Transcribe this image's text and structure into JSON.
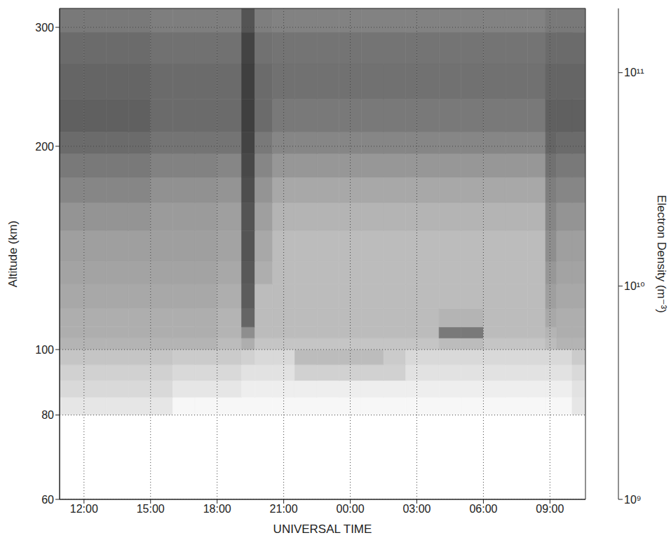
{
  "chart_data": {
    "type": "heatmap",
    "x_label": "UNIVERSAL TIME",
    "y_label": "Altitude (km)",
    "log": "y",
    "grid": true,
    "xlim": [
      10.9,
      34.6
    ],
    "xticks": [
      {
        "value": 12,
        "label": "12:00"
      },
      {
        "value": 15,
        "label": "15:00"
      },
      {
        "value": 18,
        "label": "18:00"
      },
      {
        "value": 21,
        "label": "21:00"
      },
      {
        "value": 24,
        "label": "00:00"
      },
      {
        "value": 27,
        "label": "03:00"
      },
      {
        "value": 30,
        "label": "06:00"
      },
      {
        "value": 33,
        "label": "09:00"
      }
    ],
    "ylim": [
      60,
      320
    ],
    "yticks": [
      60,
      80,
      100,
      200,
      300
    ],
    "x_edges": [
      10.9,
      12,
      13,
      14,
      15,
      16,
      17,
      18,
      19.1,
      19.7,
      20.5,
      21.5,
      22.5,
      23.5,
      24.5,
      25.5,
      26.5,
      27,
      28,
      29,
      30,
      31,
      32,
      32.8,
      33.3,
      34,
      34.6
    ],
    "y_edges": [
      60,
      80,
      85,
      90,
      95,
      100,
      104,
      108,
      115,
      125,
      135,
      150,
      165,
      180,
      195,
      210,
      235,
      265,
      295,
      320
    ],
    "cells": [
      [
        1000000000.0,
        1000000000.0,
        1000000000.0,
        1000000000.0,
        1000000000.0,
        1000000000.0,
        1000000000.0,
        1000000000.0,
        1000000000.0,
        1000000000.0,
        1000000000.0,
        1000000000.0,
        1000000000.0,
        1000000000.0,
        1000000000.0,
        1000000000.0,
        1000000000.0,
        1000000000.0,
        1000000000.0,
        1000000000.0,
        1000000000.0,
        1000000000.0,
        1000000000.0,
        1000000000.0,
        1000000000.0,
        1000000000.0
      ],
      [
        1800000000.0,
        1800000000.0,
        1800000000.0,
        1800000000.0,
        1800000000.0,
        1200000000.0,
        1200000000.0,
        1200000000.0,
        1200000000.0,
        1200000000.0,
        1200000000.0,
        1200000000.0,
        1200000000.0,
        1200000000.0,
        1200000000.0,
        1200000000.0,
        1200000000.0,
        1200000000.0,
        1200000000.0,
        1200000000.0,
        1200000000.0,
        1200000000.0,
        1200000000.0,
        1200000000.0,
        1200000000.0,
        1800000000.0
      ],
      [
        2500000000.0,
        2500000000.0,
        2500000000.0,
        2500000000.0,
        2500000000.0,
        1800000000.0,
        1800000000.0,
        1800000000.0,
        1500000000.0,
        1500000000.0,
        1500000000.0,
        1500000000.0,
        1500000000.0,
        1500000000.0,
        1500000000.0,
        1500000000.0,
        1500000000.0,
        1500000000.0,
        1500000000.0,
        1500000000.0,
        1500000000.0,
        1500000000.0,
        1500000000.0,
        1500000000.0,
        1500000000.0,
        2000000000.0
      ],
      [
        3000000000.0,
        3000000000.0,
        3000000000.0,
        3000000000.0,
        3000000000.0,
        2500000000.0,
        2500000000.0,
        2500000000.0,
        2000000000.0,
        2000000000.0,
        2000000000.0,
        3000000000.0,
        3000000000.0,
        3000000000.0,
        3000000000.0,
        3000000000.0,
        2000000000.0,
        2000000000.0,
        2000000000.0,
        2000000000.0,
        2000000000.0,
        2000000000.0,
        2000000000.0,
        2000000000.0,
        2000000000.0,
        2500000000.0
      ],
      [
        4000000000.0,
        4000000000.0,
        4000000000.0,
        4000000000.0,
        4000000000.0,
        3500000000.0,
        3500000000.0,
        3500000000.0,
        3000000000.0,
        2500000000.0,
        2500000000.0,
        5000000000.0,
        5000000000.0,
        5000000000.0,
        5000000000.0,
        3500000000.0,
        2500000000.0,
        2500000000.0,
        2500000000.0,
        2500000000.0,
        2500000000.0,
        2500000000.0,
        2500000000.0,
        2500000000.0,
        2500000000.0,
        3500000000.0
      ],
      [
        6000000000.0,
        6000000000.0,
        6000000000.0,
        6000000000.0,
        6000000000.0,
        6000000000.0,
        6000000000.0,
        5000000000.0,
        7000000000.0,
        4000000000.0,
        4000000000.0,
        4000000000.0,
        4000000000.0,
        4000000000.0,
        4000000000.0,
        4000000000.0,
        4000000000.0,
        4000000000.0,
        5000000000.0,
        5000000000.0,
        4000000000.0,
        4000000000.0,
        4000000000.0,
        5000000000.0,
        6000000000.0,
        6000000000.0
      ],
      [
        7000000000.0,
        7000000000.0,
        7000000000.0,
        7000000000.0,
        7000000000.0,
        7000000000.0,
        7000000000.0,
        6000000000.0,
        15000000000.0,
        5000000000.0,
        5000000000.0,
        5000000000.0,
        5000000000.0,
        5000000000.0,
        5000000000.0,
        5000000000.0,
        5000000000.0,
        5000000000.0,
        25000000000.0,
        25000000000.0,
        5000000000.0,
        5000000000.0,
        5000000000.0,
        6000000000.0,
        7000000000.0,
        7000000000.0
      ],
      [
        7000000000.0,
        7000000000.0,
        7000000000.0,
        7000000000.0,
        7000000000.0,
        7000000000.0,
        7000000000.0,
        6000000000.0,
        40000000000.0,
        5000000000.0,
        5000000000.0,
        5000000000.0,
        5000000000.0,
        5000000000.0,
        5000000000.0,
        5000000000.0,
        5000000000.0,
        5000000000.0,
        6000000000.0,
        6000000000.0,
        5000000000.0,
        5000000000.0,
        5000000000.0,
        8000000000.0,
        7000000000.0,
        7000000000.0
      ],
      [
        8000000000.0,
        8000000000.0,
        8000000000.0,
        8000000000.0,
        8000000000.0,
        8000000000.0,
        8000000000.0,
        7000000000.0,
        50000000000.0,
        5000000000.0,
        5000000000.0,
        5000000000.0,
        5000000000.0,
        5000000000.0,
        5000000000.0,
        5000000000.0,
        5000000000.0,
        5000000000.0,
        5000000000.0,
        5000000000.0,
        5000000000.0,
        5000000000.0,
        5000000000.0,
        10000000000.0,
        8000000000.0,
        8000000000.0
      ],
      [
        9000000000.0,
        9000000000.0,
        9000000000.0,
        9000000000.0,
        9000000000.0,
        9000000000.0,
        9000000000.0,
        8000000000.0,
        55000000000.0,
        7000000000.0,
        5000000000.0,
        5000000000.0,
        5000000000.0,
        5000000000.0,
        5000000000.0,
        5000000000.0,
        5000000000.0,
        5000000000.0,
        5000000000.0,
        5000000000.0,
        5000000000.0,
        5000000000.0,
        5000000000.0,
        12000000000.0,
        9000000000.0,
        9000000000.0
      ],
      [
        10000000000.0,
        10000000000.0,
        10000000000.0,
        10000000000.0,
        10000000000.0,
        10000000000.0,
        10000000000.0,
        9000000000.0,
        60000000000.0,
        8000000000.0,
        5000000000.0,
        5000000000.0,
        5000000000.0,
        5000000000.0,
        5000000000.0,
        5000000000.0,
        5000000000.0,
        5000000000.0,
        5000000000.0,
        5000000000.0,
        5000000000.0,
        5000000000.0,
        5000000000.0,
        15000000000.0,
        10000000000.0,
        10000000000.0
      ],
      [
        13000000000.0,
        13000000000.0,
        13000000000.0,
        13000000000.0,
        11000000000.0,
        11000000000.0,
        11000000000.0,
        10000000000.0,
        60000000000.0,
        10000000000.0,
        6000000000.0,
        6000000000.0,
        6000000000.0,
        6000000000.0,
        6000000000.0,
        6000000000.0,
        6000000000.0,
        6000000000.0,
        6000000000.0,
        6000000000.0,
        6000000000.0,
        6000000000.0,
        6000000000.0,
        18000000000.0,
        13000000000.0,
        13000000000.0
      ],
      [
        18000000000.0,
        18000000000.0,
        18000000000.0,
        18000000000.0,
        14000000000.0,
        14000000000.0,
        14000000000.0,
        13000000000.0,
        70000000000.0,
        13000000000.0,
        8000000000.0,
        8000000000.0,
        8000000000.0,
        8000000000.0,
        8000000000.0,
        8000000000.0,
        8000000000.0,
        8000000000.0,
        8000000000.0,
        8000000000.0,
        8000000000.0,
        8000000000.0,
        8000000000.0,
        22000000000.0,
        18000000000.0,
        18000000000.0
      ],
      [
        25000000000.0,
        25000000000.0,
        25000000000.0,
        25000000000.0,
        20000000000.0,
        20000000000.0,
        20000000000.0,
        18000000000.0,
        80000000000.0,
        18000000000.0,
        12000000000.0,
        12000000000.0,
        12000000000.0,
        12000000000.0,
        12000000000.0,
        12000000000.0,
        12000000000.0,
        12000000000.0,
        12000000000.0,
        12000000000.0,
        12000000000.0,
        12000000000.0,
        12000000000.0,
        30000000000.0,
        25000000000.0,
        25000000000.0
      ],
      [
        35000000000.0,
        35000000000.0,
        35000000000.0,
        35000000000.0,
        28000000000.0,
        28000000000.0,
        28000000000.0,
        28000000000.0,
        90000000000.0,
        25000000000.0,
        18000000000.0,
        18000000000.0,
        18000000000.0,
        18000000000.0,
        18000000000.0,
        18000000000.0,
        18000000000.0,
        18000000000.0,
        18000000000.0,
        18000000000.0,
        18000000000.0,
        18000000000.0,
        18000000000.0,
        40000000000.0,
        35000000000.0,
        35000000000.0
      ],
      [
        45000000000.0,
        45000000000.0,
        45000000000.0,
        45000000000.0,
        35000000000.0,
        35000000000.0,
        35000000000.0,
        35000000000.0,
        100000000000.0,
        35000000000.0,
        25000000000.0,
        25000000000.0,
        25000000000.0,
        25000000000.0,
        25000000000.0,
        25000000000.0,
        25000000000.0,
        25000000000.0,
        25000000000.0,
        25000000000.0,
        25000000000.0,
        25000000000.0,
        25000000000.0,
        45000000000.0,
        45000000000.0,
        45000000000.0
      ],
      [
        40000000000.0,
        40000000000.0,
        40000000000.0,
        40000000000.0,
        35000000000.0,
        35000000000.0,
        35000000000.0,
        35000000000.0,
        100000000000.0,
        35000000000.0,
        30000000000.0,
        30000000000.0,
        30000000000.0,
        30000000000.0,
        30000000000.0,
        30000000000.0,
        30000000000.0,
        30000000000.0,
        30000000000.0,
        30000000000.0,
        30000000000.0,
        30000000000.0,
        30000000000.0,
        40000000000.0,
        40000000000.0,
        40000000000.0
      ],
      [
        35000000000.0,
        35000000000.0,
        35000000000.0,
        35000000000.0,
        30000000000.0,
        30000000000.0,
        30000000000.0,
        30000000000.0,
        90000000000.0,
        30000000000.0,
        28000000000.0,
        28000000000.0,
        28000000000.0,
        28000000000.0,
        28000000000.0,
        28000000000.0,
        28000000000.0,
        28000000000.0,
        28000000000.0,
        28000000000.0,
        28000000000.0,
        28000000000.0,
        28000000000.0,
        35000000000.0,
        35000000000.0,
        35000000000.0
      ],
      [
        25000000000.0,
        25000000000.0,
        25000000000.0,
        25000000000.0,
        22000000000.0,
        22000000000.0,
        22000000000.0,
        22000000000.0,
        60000000000.0,
        22000000000.0,
        20000000000.0,
        20000000000.0,
        20000000000.0,
        20000000000.0,
        20000000000.0,
        20000000000.0,
        20000000000.0,
        20000000000.0,
        20000000000.0,
        20000000000.0,
        20000000000.0,
        20000000000.0,
        20000000000.0,
        25000000000.0,
        25000000000.0,
        25000000000.0
      ]
    ],
    "colorbar": {
      "label": "Electron Density (m⁻³)",
      "log": true,
      "range": [
        1000000000.0,
        200000000000.0
      ],
      "ticks": [
        {
          "value": 1000000000.0,
          "label": "10⁹"
        },
        {
          "value": 10000000000.0,
          "label": "10¹⁰"
        },
        {
          "value": 100000000000.0,
          "label": "10¹¹"
        }
      ]
    }
  }
}
